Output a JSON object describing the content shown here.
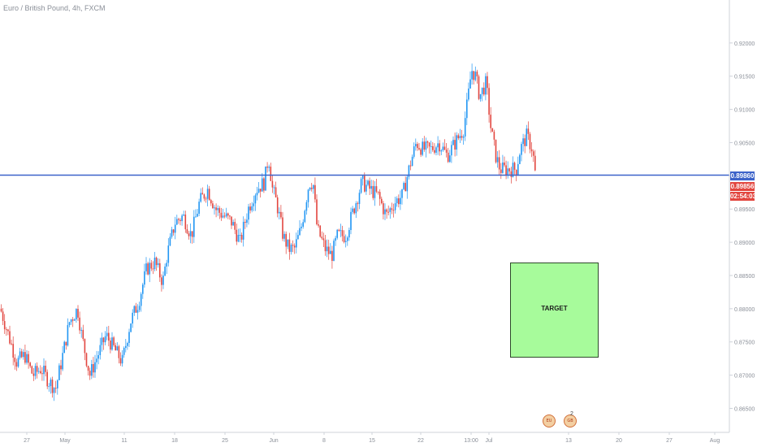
{
  "header": {
    "symbol_title": "Euro / British Pound, 4h, FXCM"
  },
  "chart_data": {
    "type": "candlestick",
    "title": "Euro / British Pound, 4h, FXCM",
    "ylim": [
      0.862,
      0.925
    ],
    "y_ticks": [
      "0.86500",
      "0.87000",
      "0.87500",
      "0.88000",
      "0.88500",
      "0.89000",
      "0.89500",
      "0.90000",
      "0.90500",
      "0.91000",
      "0.91500",
      "0.92000"
    ],
    "x_ticks": [
      "27",
      "May",
      "11",
      "18",
      "25",
      "Jun",
      "8",
      "15",
      "22",
      "13:00",
      "Jul",
      "13",
      "20",
      "27",
      "Aug"
    ],
    "horizontal_line": {
      "price": 0.8986,
      "label": "0.89860",
      "color": "#3d63c9"
    },
    "current_price": {
      "price": 0.89856,
      "label": "0.89856",
      "color": "#e2463f"
    },
    "countdown": "02:54:03",
    "target_zone": {
      "label": "TARGET",
      "y_top": 0.8865,
      "y_bottom": 0.8725,
      "color": "#a7fb9b"
    },
    "price_path": [
      [
        0,
        0.88
      ],
      [
        10,
        0.876
      ],
      [
        20,
        0.872
      ],
      [
        30,
        0.873
      ],
      [
        40,
        0.87
      ],
      [
        50,
        0.871
      ],
      [
        60,
        0.869
      ],
      [
        68,
        0.868
      ],
      [
        75,
        0.872
      ],
      [
        85,
        0.878
      ],
      [
        95,
        0.88
      ],
      [
        100,
        0.876
      ],
      [
        105,
        0.873
      ],
      [
        110,
        0.87
      ],
      [
        120,
        0.873
      ],
      [
        130,
        0.876
      ],
      [
        140,
        0.874
      ],
      [
        150,
        0.872
      ],
      [
        160,
        0.878
      ],
      [
        170,
        0.881
      ],
      [
        180,
        0.886
      ],
      [
        190,
        0.887
      ],
      [
        200,
        0.884
      ],
      [
        205,
        0.888
      ],
      [
        215,
        0.893
      ],
      [
        225,
        0.894
      ],
      [
        235,
        0.891
      ],
      [
        245,
        0.896
      ],
      [
        255,
        0.898
      ],
      [
        265,
        0.895
      ],
      [
        275,
        0.894
      ],
      [
        285,
        0.893
      ],
      [
        295,
        0.89
      ],
      [
        305,
        0.895
      ],
      [
        315,
        0.898
      ],
      [
        325,
        0.899
      ],
      [
        330,
        0.903
      ],
      [
        335,
        0.898
      ],
      [
        340,
        0.896
      ],
      [
        348,
        0.891
      ],
      [
        355,
        0.889
      ],
      [
        362,
        0.889
      ],
      [
        370,
        0.892
      ],
      [
        380,
        0.899
      ],
      [
        385,
        0.899
      ],
      [
        390,
        0.892
      ],
      [
        400,
        0.889
      ],
      [
        408,
        0.888
      ],
      [
        415,
        0.891
      ],
      [
        425,
        0.891
      ],
      [
        435,
        0.895
      ],
      [
        445,
        0.899
      ],
      [
        455,
        0.898
      ],
      [
        465,
        0.897
      ],
      [
        475,
        0.894
      ],
      [
        485,
        0.896
      ],
      [
        495,
        0.897
      ],
      [
        505,
        0.902
      ],
      [
        512,
        0.905
      ],
      [
        520,
        0.904
      ],
      [
        530,
        0.904
      ],
      [
        540,
        0.905
      ],
      [
        550,
        0.903
      ],
      [
        560,
        0.905
      ],
      [
        570,
        0.907
      ],
      [
        575,
        0.911
      ],
      [
        580,
        0.916
      ],
      [
        585,
        0.915
      ],
      [
        590,
        0.912
      ],
      [
        598,
        0.914
      ],
      [
        604,
        0.907
      ],
      [
        610,
        0.903
      ],
      [
        615,
        0.901
      ],
      [
        625,
        0.901
      ],
      [
        635,
        0.901
      ],
      [
        640,
        0.904
      ],
      [
        648,
        0.906
      ],
      [
        655,
        0.904
      ],
      [
        660,
        0.8986
      ]
    ]
  },
  "price_scale": {
    "line_label": "0.89860",
    "current_label": "0.89856",
    "countdown": "02:54:03"
  },
  "target": {
    "label": "TARGET"
  },
  "events": {
    "count": "2"
  }
}
